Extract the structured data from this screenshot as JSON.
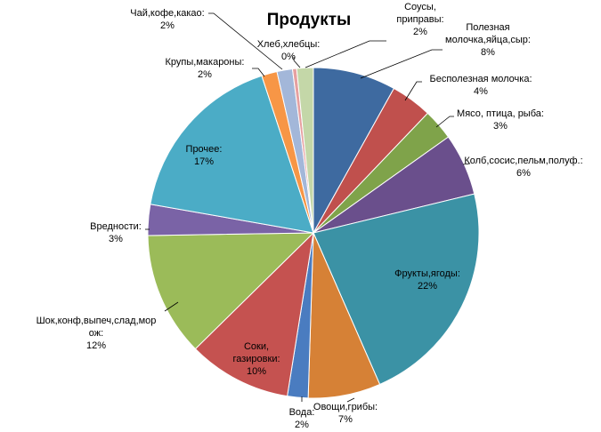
{
  "chart_data": {
    "type": "pie",
    "title": "Продукты",
    "slices": [
      {
        "label": "Полезная молочка,яйца,сыр:",
        "value": 8,
        "pct_text": "8%",
        "color": "#3e6aa0"
      },
      {
        "label": "Бесполезная молочка:",
        "value": 4,
        "pct_text": "4%",
        "color": "#c0504d"
      },
      {
        "label": "Мясо, птица, рыба:",
        "value": 3,
        "pct_text": "3%",
        "color": "#7fa34a"
      },
      {
        "label": "Колб,сосис,пельм,полуф.:",
        "value": 6,
        "pct_text": "6%",
        "color": "#6a4f8c"
      },
      {
        "label": "Фрукты,ягоды:",
        "value": 22,
        "pct_text": "22%",
        "color": "#3b92a5"
      },
      {
        "label": "Овощи,грибы:",
        "value": 7,
        "pct_text": "7%",
        "color": "#d68136"
      },
      {
        "label": "Вода:",
        "value": 2,
        "pct_text": "2%",
        "color": "#4a7cc0"
      },
      {
        "label": "Соки, газировки:",
        "value": 10,
        "pct_text": "10%",
        "color": "#c55250"
      },
      {
        "label": "Шок,конф,выпеч,слад,морож:",
        "value": 12,
        "pct_text": "12%",
        "color": "#9bbb59"
      },
      {
        "label": "Вредности:",
        "value": 3,
        "pct_text": "3%",
        "color": "#7a63a6"
      },
      {
        "label": "Прочее:",
        "value": 17,
        "pct_text": "17%",
        "color": "#4bacc6"
      },
      {
        "label": "Крупы,макароны:",
        "value": 1.5,
        "pct_text": "2%",
        "color": "#f79646"
      },
      {
        "label": "Чай,кофе,какао:",
        "value": 1.5,
        "pct_text": "2%",
        "color": "#a3b7d9"
      },
      {
        "label": "Хлеб,хлебцы:",
        "value": 0.4,
        "pct_text": "0%",
        "color": "#e6a0a0"
      },
      {
        "label": "Соусы, приправы:",
        "value": 1.6,
        "pct_text": "2%",
        "color": "#c4d7a8"
      }
    ]
  }
}
